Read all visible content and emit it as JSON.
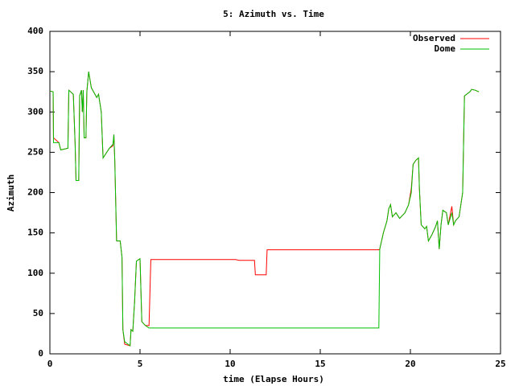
{
  "chart_data": {
    "type": "line",
    "title": "5: Azimuth vs. Time",
    "x_label": "time (Elapse Hours)",
    "y_label": "Azimuth",
    "x": [
      0,
      0.18,
      0.2,
      0.5,
      0.6,
      1.0,
      1.05,
      1.3,
      1.4,
      1.45,
      1.6,
      1.65,
      1.75,
      1.8,
      1.85,
      1.9,
      2.0,
      2.05,
      2.15,
      2.3,
      2.6,
      2.7,
      2.85,
      2.95,
      3.3,
      3.5,
      3.55,
      3.6,
      3.7,
      3.9,
      4.0,
      4.05,
      4.15,
      4.45,
      4.5,
      4.6,
      4.7,
      4.8,
      5.0,
      5.1,
      5.3,
      5.5,
      5.6,
      10.3,
      10.5,
      11.35,
      11.4,
      12.0,
      12.05,
      18.25,
      18.3,
      18.5,
      18.7,
      18.8,
      18.9,
      19.0,
      19.2,
      19.4,
      19.7,
      19.9,
      20.05,
      20.15,
      20.3,
      20.45,
      20.5,
      20.6,
      20.8,
      20.9,
      21.0,
      21.2,
      21.4,
      21.5,
      21.6,
      21.7,
      21.8,
      22.0,
      22.1,
      22.3,
      22.4,
      22.5,
      22.7,
      22.9,
      23.0,
      23.3,
      23.4,
      23.6,
      23.8
    ],
    "series": [
      {
        "name": "Observed",
        "color": "#ff0000",
        "values": [
          326,
          325,
          268,
          262,
          253,
          255,
          327,
          322,
          260,
          215,
          215,
          320,
          327,
          300,
          327,
          268,
          268,
          325,
          350,
          330,
          318,
          322,
          300,
          243,
          255,
          258,
          272,
          240,
          140,
          140,
          120,
          30,
          12,
          10,
          30,
          28,
          65,
          115,
          118,
          40,
          35,
          35,
          117,
          117,
          116,
          116,
          98,
          98,
          129,
          129,
          130,
          150,
          165,
          180,
          185,
          170,
          175,
          168,
          175,
          185,
          205,
          235,
          240,
          243,
          205,
          160,
          155,
          158,
          140,
          148,
          158,
          165,
          130,
          160,
          178,
          175,
          160,
          183,
          160,
          165,
          170,
          200,
          320,
          325,
          328,
          327,
          325
        ]
      },
      {
        "name": "Dome",
        "color": "#00c000",
        "values": [
          326,
          325,
          262,
          262,
          253,
          255,
          327,
          322,
          260,
          215,
          215,
          320,
          327,
          300,
          327,
          268,
          268,
          325,
          350,
          330,
          318,
          322,
          300,
          243,
          255,
          260,
          272,
          240,
          140,
          140,
          120,
          30,
          15,
          10,
          30,
          28,
          65,
          115,
          118,
          40,
          35,
          32,
          32,
          32,
          32,
          32,
          32,
          32,
          32,
          32,
          130,
          150,
          165,
          180,
          185,
          170,
          175,
          168,
          175,
          185,
          200,
          235,
          240,
          243,
          205,
          160,
          155,
          158,
          140,
          148,
          158,
          165,
          130,
          160,
          178,
          175,
          160,
          175,
          160,
          165,
          170,
          200,
          320,
          325,
          328,
          327,
          325
        ]
      }
    ],
    "xlim": [
      0,
      25
    ],
    "xticks": [
      0,
      5,
      10,
      15,
      20,
      25
    ],
    "ylim": [
      0,
      400
    ],
    "yticks": [
      0,
      50,
      100,
      150,
      200,
      250,
      300,
      350,
      400
    ],
    "legend": "top-right"
  }
}
